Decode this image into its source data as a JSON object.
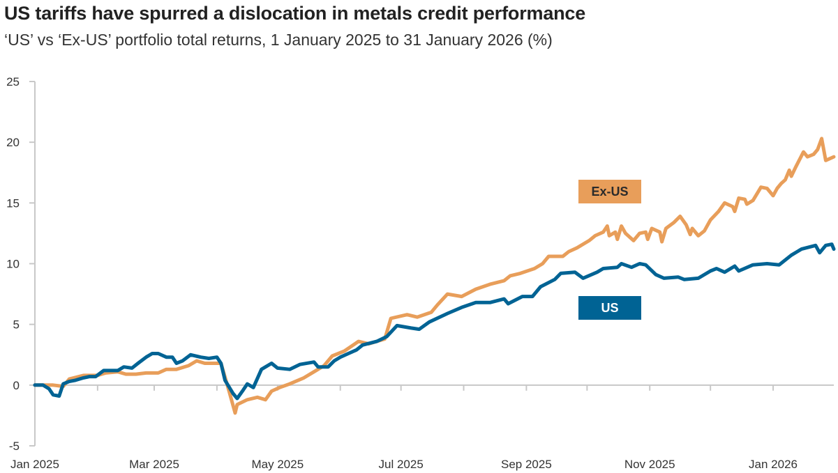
{
  "title": "US tariffs have spurred a dislocation in metals credit performance",
  "subtitle": "‘US’ vs ‘Ex-US’ portfolio total returns, 1 January 2025 to 31 January 2026 (%)",
  "colors": {
    "US": "#006394",
    "Ex-US": "#E89E5A",
    "axis": "#c8c8c8"
  },
  "chart_data": {
    "type": "line",
    "title": "US tariffs have spurred a dislocation in metals credit performance",
    "subtitle": "‘US’ vs ‘Ex-US’ portfolio total returns, 1 January 2025 to 31 January 2026 (%)",
    "xlabel": "",
    "ylabel": "",
    "xlim": [
      "2025-01-01",
      "2026-01-31"
    ],
    "ylim": [
      -5,
      25
    ],
    "y_ticks": [
      -5,
      0,
      5,
      10,
      15,
      20,
      25
    ],
    "x_ticks": [
      "2025-01-01",
      "2025-02-01",
      "2025-03-01",
      "2025-04-01",
      "2025-05-01",
      "2025-06-01",
      "2025-07-01",
      "2025-08-01",
      "2025-09-01",
      "2025-10-01",
      "2025-11-01",
      "2025-12-01",
      "2026-01-01"
    ],
    "x_tick_labels": [
      {
        "date": "2025-01-01",
        "label": "Jan 2025"
      },
      {
        "date": "2025-03-01",
        "label": "Mar 2025"
      },
      {
        "date": "2025-05-01",
        "label": "May 2025"
      },
      {
        "date": "2025-07-01",
        "label": "Jul 2025"
      },
      {
        "date": "2025-09-01",
        "label": "Sep 2025"
      },
      {
        "date": "2025-11-01",
        "label": "Nov 2025"
      },
      {
        "date": "2026-01-01",
        "label": "Jan 2026"
      }
    ],
    "grid": false,
    "legend": "inline labels, right of center",
    "series": [
      {
        "name": "Ex-US",
        "color": "#E89E5A",
        "points": [
          [
            "2025-01-01",
            0
          ],
          [
            "2025-01-10",
            0
          ],
          [
            "2025-01-15",
            -0.1
          ],
          [
            "2025-01-18",
            0.5
          ],
          [
            "2025-01-25",
            0.8
          ],
          [
            "2025-02-01",
            0.8
          ],
          [
            "2025-02-05",
            1.0
          ],
          [
            "2025-02-11",
            1.1
          ],
          [
            "2025-02-15",
            0.9
          ],
          [
            "2025-02-20",
            0.9
          ],
          [
            "2025-02-25",
            1.0
          ],
          [
            "2025-03-03",
            1.0
          ],
          [
            "2025-03-07",
            1.3
          ],
          [
            "2025-03-12",
            1.3
          ],
          [
            "2025-03-18",
            1.6
          ],
          [
            "2025-03-22",
            2.0
          ],
          [
            "2025-03-26",
            1.8
          ],
          [
            "2025-04-01",
            1.8
          ],
          [
            "2025-04-03",
            1.8
          ],
          [
            "2025-04-07",
            -0.5
          ],
          [
            "2025-04-10",
            -2.3
          ],
          [
            "2025-04-11",
            -1.6
          ],
          [
            "2025-04-16",
            -1.2
          ],
          [
            "2025-04-21",
            -1.0
          ],
          [
            "2025-04-25",
            -1.2
          ],
          [
            "2025-04-28",
            -0.5
          ],
          [
            "2025-05-02",
            -0.2
          ],
          [
            "2025-05-07",
            0.1
          ],
          [
            "2025-05-14",
            0.6
          ],
          [
            "2025-05-19",
            1.1
          ],
          [
            "2025-05-24",
            1.6
          ],
          [
            "2025-05-28",
            2.4
          ],
          [
            "2025-06-03",
            2.8
          ],
          [
            "2025-06-10",
            3.6
          ],
          [
            "2025-06-15",
            3.4
          ],
          [
            "2025-06-23",
            3.8
          ],
          [
            "2025-06-26",
            5.5
          ],
          [
            "2025-07-04",
            5.8
          ],
          [
            "2025-07-09",
            5.6
          ],
          [
            "2025-07-16",
            6.0
          ],
          [
            "2025-07-19",
            6.6
          ],
          [
            "2025-07-24",
            7.5
          ],
          [
            "2025-07-31",
            7.3
          ],
          [
            "2025-08-07",
            7.9
          ],
          [
            "2025-08-14",
            8.3
          ],
          [
            "2025-08-21",
            8.6
          ],
          [
            "2025-08-24",
            9.0
          ],
          [
            "2025-08-29",
            9.2
          ],
          [
            "2025-09-05",
            9.6
          ],
          [
            "2025-09-09",
            10.0
          ],
          [
            "2025-09-12",
            10.6
          ],
          [
            "2025-09-19",
            10.6
          ],
          [
            "2025-09-22",
            11.0
          ],
          [
            "2025-09-26",
            11.3
          ],
          [
            "2025-10-02",
            11.9
          ],
          [
            "2025-10-05",
            12.3
          ],
          [
            "2025-10-09",
            12.6
          ],
          [
            "2025-10-11",
            13.1
          ],
          [
            "2025-10-12",
            12.3
          ],
          [
            "2025-10-15",
            12.6
          ],
          [
            "2025-10-16",
            12.0
          ],
          [
            "2025-10-18",
            13.1
          ],
          [
            "2025-10-20",
            12.5
          ],
          [
            "2025-10-24",
            11.9
          ],
          [
            "2025-10-27",
            12.5
          ],
          [
            "2025-10-30",
            12.6
          ],
          [
            "2025-10-31",
            12.0
          ],
          [
            "2025-11-02",
            12.9
          ],
          [
            "2025-11-06",
            12.6
          ],
          [
            "2025-11-07",
            11.8
          ],
          [
            "2025-11-09",
            12.9
          ],
          [
            "2025-11-13",
            13.4
          ],
          [
            "2025-11-16",
            13.9
          ],
          [
            "2025-11-19",
            13.2
          ],
          [
            "2025-11-21",
            12.4
          ],
          [
            "2025-11-22",
            12.9
          ],
          [
            "2025-11-25",
            12.3
          ],
          [
            "2025-11-28",
            12.7
          ],
          [
            "2025-12-01",
            13.6
          ],
          [
            "2025-12-05",
            14.3
          ],
          [
            "2025-12-08",
            15.0
          ],
          [
            "2025-12-12",
            14.7
          ],
          [
            "2025-12-13",
            14.3
          ],
          [
            "2025-12-15",
            15.4
          ],
          [
            "2025-12-18",
            15.3
          ],
          [
            "2025-12-19",
            14.9
          ],
          [
            "2025-12-22",
            15.2
          ],
          [
            "2025-12-26",
            16.3
          ],
          [
            "2025-12-29",
            16.2
          ],
          [
            "2026-01-01",
            15.6
          ],
          [
            "2026-01-03",
            16.2
          ],
          [
            "2026-01-05",
            16.6
          ],
          [
            "2026-01-07",
            16.9
          ],
          [
            "2026-01-09",
            17.7
          ],
          [
            "2026-01-10",
            17.2
          ],
          [
            "2026-01-12",
            17.9
          ],
          [
            "2026-01-16",
            19.2
          ],
          [
            "2026-01-18",
            18.8
          ],
          [
            "2026-01-21",
            19.0
          ],
          [
            "2026-01-23",
            19.4
          ],
          [
            "2026-01-25",
            20.3
          ],
          [
            "2026-01-27",
            18.5
          ],
          [
            "2026-01-31",
            18.8
          ]
        ]
      },
      {
        "name": "US",
        "color": "#006394",
        "points": [
          [
            "2025-01-01",
            0
          ],
          [
            "2025-01-05",
            0
          ],
          [
            "2025-01-08",
            -0.3
          ],
          [
            "2025-01-10",
            -0.8
          ],
          [
            "2025-01-13",
            -0.9
          ],
          [
            "2025-01-15",
            0.1
          ],
          [
            "2025-01-18",
            0.3
          ],
          [
            "2025-01-21",
            0.4
          ],
          [
            "2025-01-25",
            0.6
          ],
          [
            "2025-01-28",
            0.7
          ],
          [
            "2025-01-31",
            0.7
          ],
          [
            "2025-02-04",
            1.2
          ],
          [
            "2025-02-11",
            1.2
          ],
          [
            "2025-02-14",
            1.5
          ],
          [
            "2025-02-18",
            1.4
          ],
          [
            "2025-02-21",
            1.8
          ],
          [
            "2025-02-25",
            2.3
          ],
          [
            "2025-02-28",
            2.6
          ],
          [
            "2025-03-03",
            2.6
          ],
          [
            "2025-03-07",
            2.3
          ],
          [
            "2025-03-10",
            2.3
          ],
          [
            "2025-03-12",
            1.8
          ],
          [
            "2025-03-15",
            2.0
          ],
          [
            "2025-03-19",
            2.5
          ],
          [
            "2025-03-24",
            2.3
          ],
          [
            "2025-03-28",
            2.2
          ],
          [
            "2025-04-01",
            2.3
          ],
          [
            "2025-04-03",
            1.8
          ],
          [
            "2025-04-05",
            0.4
          ],
          [
            "2025-04-09",
            -0.7
          ],
          [
            "2025-04-11",
            -1.1
          ],
          [
            "2025-04-14",
            -0.4
          ],
          [
            "2025-04-16",
            0.1
          ],
          [
            "2025-04-19",
            -0.2
          ],
          [
            "2025-04-23",
            1.3
          ],
          [
            "2025-04-28",
            1.8
          ],
          [
            "2025-05-01",
            1.4
          ],
          [
            "2025-05-07",
            1.3
          ],
          [
            "2025-05-12",
            1.7
          ],
          [
            "2025-05-19",
            1.9
          ],
          [
            "2025-05-21",
            1.5
          ],
          [
            "2025-05-26",
            1.5
          ],
          [
            "2025-05-29",
            2.0
          ],
          [
            "2025-06-01",
            2.3
          ],
          [
            "2025-06-05",
            2.6
          ],
          [
            "2025-06-09",
            2.9
          ],
          [
            "2025-06-12",
            3.3
          ],
          [
            "2025-06-19",
            3.6
          ],
          [
            "2025-06-24",
            4.0
          ],
          [
            "2025-06-29",
            4.9
          ],
          [
            "2025-07-06",
            4.7
          ],
          [
            "2025-07-10",
            4.6
          ],
          [
            "2025-07-15",
            5.2
          ],
          [
            "2025-07-24",
            5.9
          ],
          [
            "2025-07-31",
            6.4
          ],
          [
            "2025-08-07",
            6.8
          ],
          [
            "2025-08-14",
            6.8
          ],
          [
            "2025-08-21",
            7.1
          ],
          [
            "2025-08-23",
            6.7
          ],
          [
            "2025-08-30",
            7.3
          ],
          [
            "2025-09-04",
            7.3
          ],
          [
            "2025-09-08",
            8.1
          ],
          [
            "2025-09-15",
            8.7
          ],
          [
            "2025-09-18",
            9.2
          ],
          [
            "2025-09-25",
            9.3
          ],
          [
            "2025-09-29",
            8.8
          ],
          [
            "2025-10-06",
            9.3
          ],
          [
            "2025-10-09",
            9.6
          ],
          [
            "2025-10-16",
            9.7
          ],
          [
            "2025-10-18",
            10.0
          ],
          [
            "2025-10-23",
            9.7
          ],
          [
            "2025-10-27",
            10.0
          ],
          [
            "2025-10-30",
            9.9
          ],
          [
            "2025-11-04",
            9.1
          ],
          [
            "2025-11-08",
            8.8
          ],
          [
            "2025-11-15",
            8.9
          ],
          [
            "2025-11-18",
            8.7
          ],
          [
            "2025-11-25",
            8.8
          ],
          [
            "2025-12-01",
            9.4
          ],
          [
            "2025-12-04",
            9.6
          ],
          [
            "2025-12-08",
            9.3
          ],
          [
            "2025-12-13",
            9.8
          ],
          [
            "2025-12-15",
            9.4
          ],
          [
            "2025-12-22",
            9.9
          ],
          [
            "2025-12-29",
            10.0
          ],
          [
            "2026-01-04",
            9.9
          ],
          [
            "2026-01-10",
            10.7
          ],
          [
            "2026-01-15",
            11.2
          ],
          [
            "2026-01-22",
            11.5
          ],
          [
            "2026-01-24",
            10.9
          ],
          [
            "2026-01-27",
            11.5
          ],
          [
            "2026-01-30",
            11.6
          ],
          [
            "2026-01-31",
            11.2
          ]
        ]
      }
    ]
  }
}
